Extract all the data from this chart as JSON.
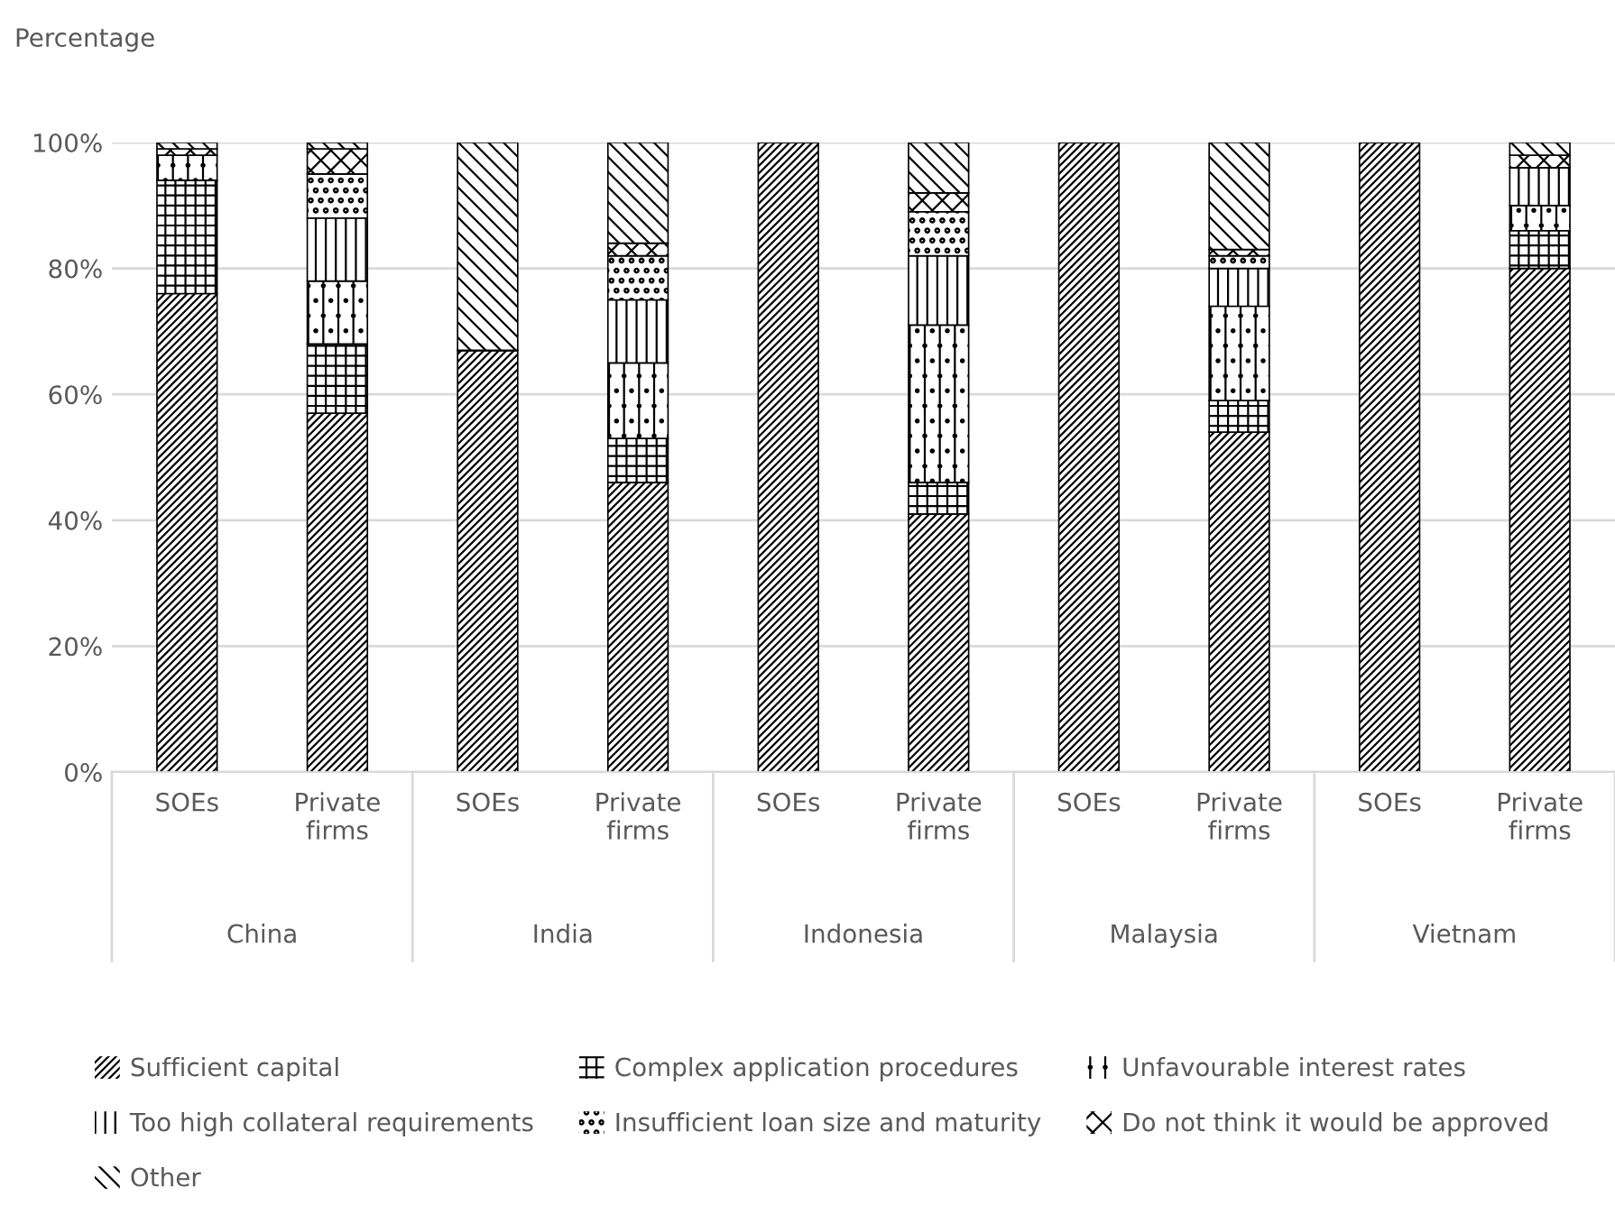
{
  "chart_data": {
    "type": "bar",
    "stacked": true,
    "ylabel": "Percentage",
    "categories": [
      "SOEs",
      "Private firms",
      "SOEs",
      "Private firms",
      "SOEs",
      "Private firms",
      "SOEs",
      "Private firms",
      "SOEs",
      "Private firms"
    ],
    "annotations": [
      "China",
      "India",
      "Indonesia",
      "Malaysia",
      "Vietnam"
    ],
    "ylim": [
      0,
      100
    ],
    "yticks": [
      {
        "value": 0,
        "label": "0%"
      },
      {
        "value": 20,
        "label": "20%"
      },
      {
        "value": 40,
        "label": "40%"
      },
      {
        "value": 60,
        "label": "60%"
      },
      {
        "value": 80,
        "label": "80%"
      },
      {
        "value": 100,
        "label": "100%"
      }
    ],
    "grid": "y",
    "legend": "bottom",
    "series": [
      {
        "name": "Sufficient capital",
        "color": "#000000",
        "values": [
          76,
          57,
          67,
          46,
          100,
          41,
          100,
          54,
          100,
          80
        ]
      },
      {
        "name": "Complex application procedures",
        "color": "#000000",
        "values": [
          18,
          11,
          0,
          7,
          0,
          5,
          0,
          5,
          0,
          6
        ]
      },
      {
        "name": "Unfavourable interest rates",
        "color": "#000000",
        "values": [
          4,
          10,
          0,
          12,
          0,
          25,
          0,
          15,
          0,
          4
        ]
      },
      {
        "name": "Too high collateral requirements",
        "color": "#000000",
        "values": [
          0,
          10,
          0,
          10,
          0,
          11,
          0,
          6,
          0,
          6
        ]
      },
      {
        "name": "Insufficient loan size and maturity",
        "color": "#000000",
        "values": [
          0,
          7,
          0,
          7,
          0,
          7,
          0,
          2,
          0,
          0
        ]
      },
      {
        "name": "Do not think it would be approved",
        "color": "#000000",
        "values": [
          1,
          4,
          0,
          2,
          0,
          3,
          0,
          1,
          0,
          2
        ]
      },
      {
        "name": "Other",
        "color": "#000000",
        "values": [
          1,
          1,
          33,
          16,
          0,
          8,
          0,
          17,
          0,
          2
        ]
      }
    ]
  }
}
